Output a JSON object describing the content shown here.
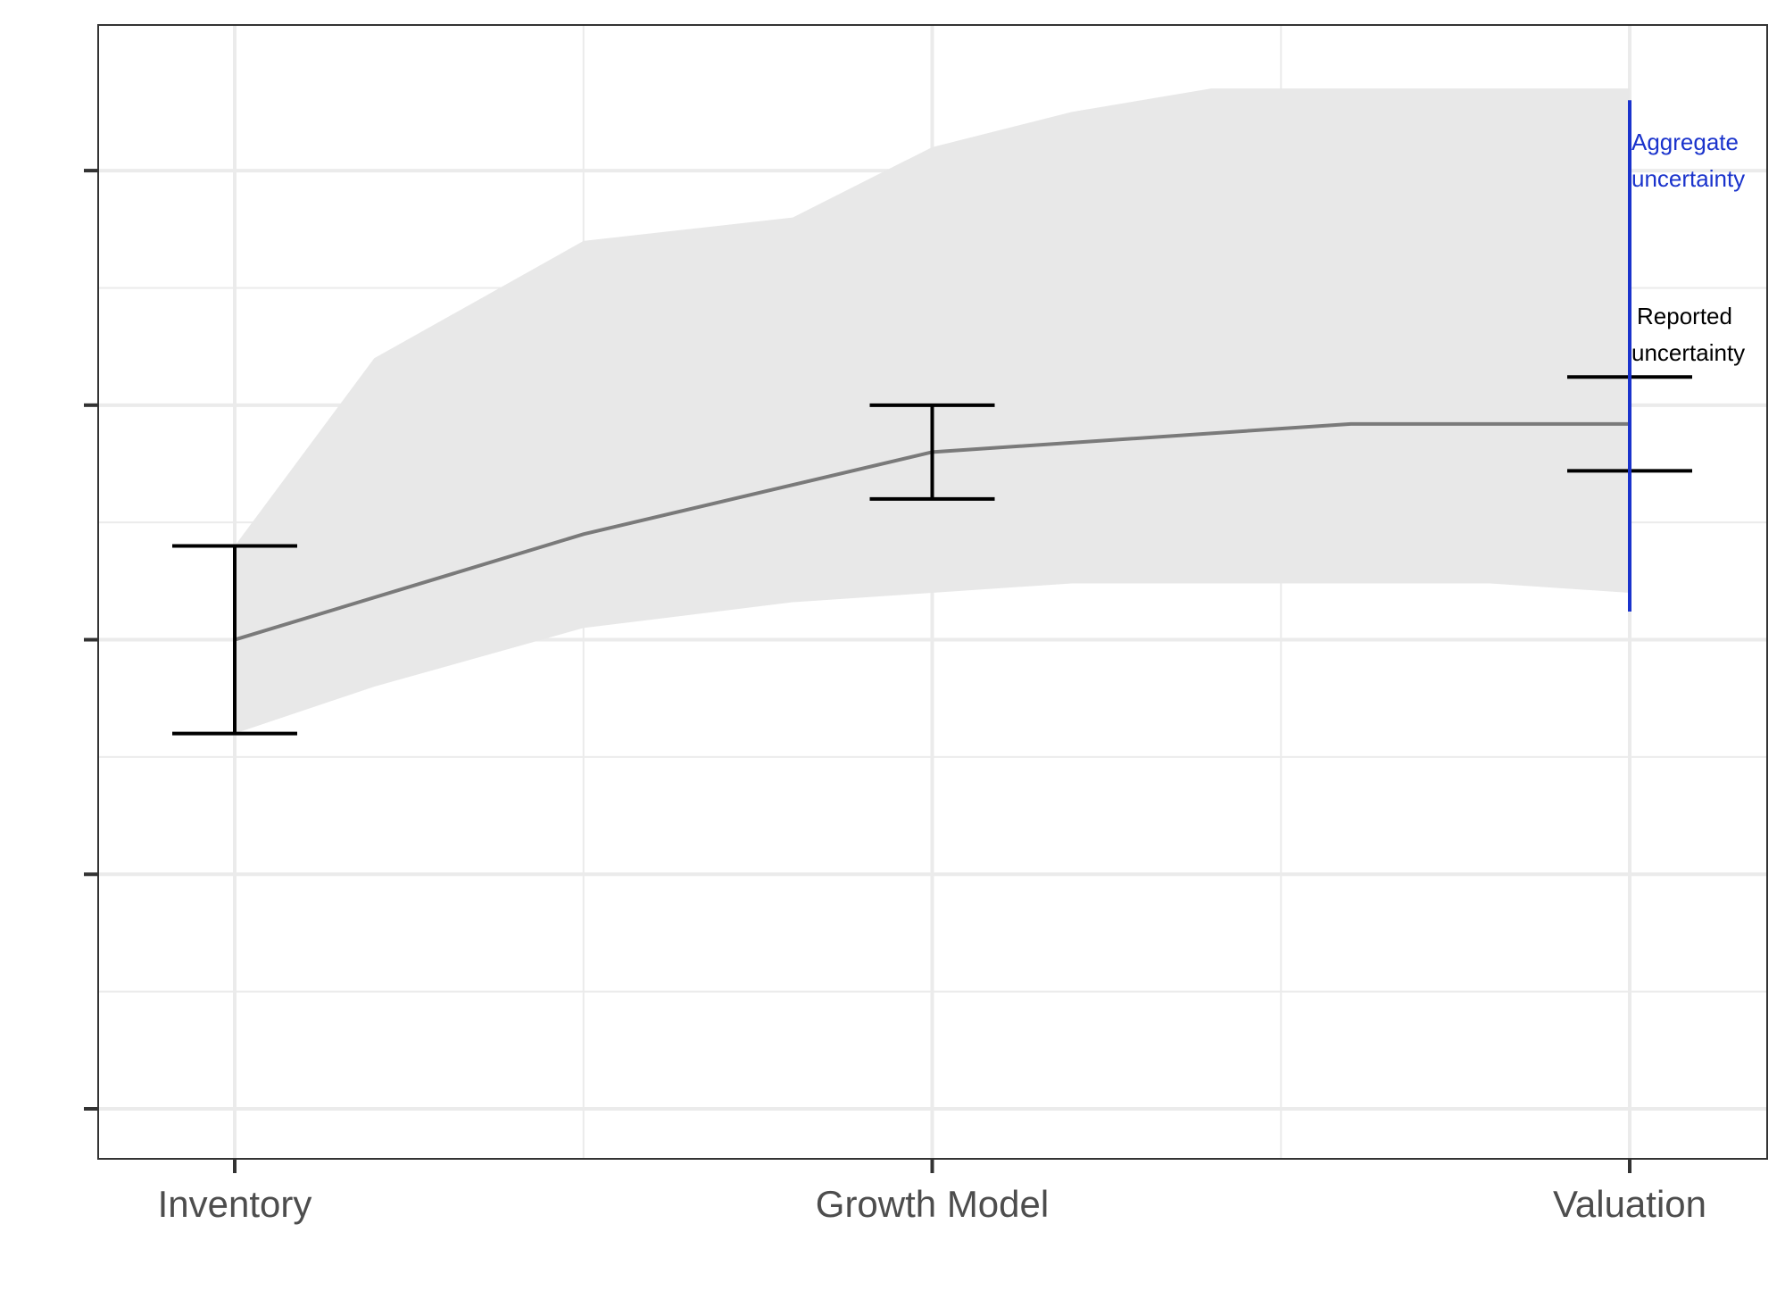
{
  "chart_data": {
    "type": "line",
    "title": "",
    "xlabel": "",
    "ylabel": "",
    "x_categories": [
      "Inventory",
      "Growth Model",
      "Valuation"
    ],
    "y_tick_labels": [],
    "ylim": [
      0,
      4.4
    ],
    "grid": true,
    "mean_line": {
      "x": [
        1,
        1.5,
        2,
        2.2,
        2.6,
        2.8,
        3
      ],
      "y": [
        2.0,
        2.45,
        2.8,
        2.84,
        2.92,
        2.92,
        2.92
      ]
    },
    "aggregate_band": {
      "x": [
        1,
        1.2,
        1.5,
        1.8,
        2,
        2.2,
        2.4,
        2.6,
        2.8,
        3
      ],
      "upper": [
        2.4,
        3.2,
        3.7,
        3.8,
        4.1,
        4.25,
        4.35,
        4.35,
        4.35,
        4.35
      ],
      "lower": [
        1.6,
        1.8,
        2.05,
        2.16,
        2.2,
        2.24,
        2.24,
        2.24,
        2.24,
        2.2
      ]
    },
    "reported_errorbars": [
      {
        "x": 1,
        "center": 2.0,
        "low": 1.6,
        "high": 2.4
      },
      {
        "x": 2,
        "center": 2.8,
        "low": 2.6,
        "high": 3.0
      },
      {
        "x": 3,
        "center": 2.92,
        "low": 2.72,
        "high": 3.12
      }
    ],
    "aggregate_segment": {
      "x": 3,
      "low": 2.12,
      "high": 4.3,
      "color": "#1a33cc"
    },
    "annotations": {
      "aggregate": [
        "Aggregate",
        "uncertainty"
      ],
      "reported": [
        "Reported",
        "uncertainty"
      ]
    },
    "colors": {
      "band": "#e8e8e8",
      "line": "#7a7a7a",
      "errorbar": "#000000",
      "aggregate": "#1a33cc",
      "grid": "#ebebeb",
      "axis_text": "#4d4d4d"
    }
  }
}
